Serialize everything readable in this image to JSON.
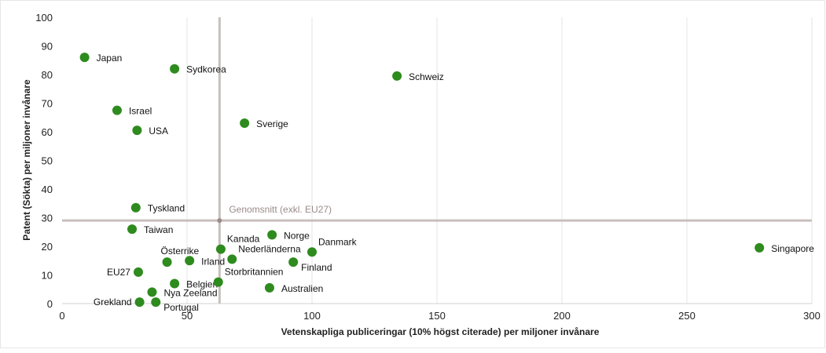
{
  "chart_data": {
    "type": "scatter",
    "title": "",
    "xlabel": "Vetenskapliga publiceringar (10% högst citerade) per miljoner invånare",
    "ylabel": "Patent (Sökta) per miljoner invånare",
    "xlim": [
      0,
      300
    ],
    "ylim": [
      0,
      100
    ],
    "xticks": [
      0,
      50,
      100,
      150,
      200,
      250,
      300
    ],
    "yticks": [
      0,
      10,
      20,
      30,
      40,
      50,
      60,
      70,
      80,
      90,
      100
    ],
    "grid": "vertical",
    "point_color": "#2e8b1e",
    "average_line_color": "#c9bfbd",
    "average": {
      "label": "Genomsnitt (exkl. EU27)",
      "x": 63,
      "y": 29
    },
    "points": [
      {
        "name": "Japan",
        "x": 9,
        "y": 86,
        "label_pos": "right"
      },
      {
        "name": "Sydkorea",
        "x": 45,
        "y": 82,
        "label_pos": "right"
      },
      {
        "name": "Schweiz",
        "x": 134,
        "y": 79.5,
        "label_pos": "right"
      },
      {
        "name": "Israel",
        "x": 22,
        "y": 67.5,
        "label_pos": "right"
      },
      {
        "name": "Sverige",
        "x": 73,
        "y": 63,
        "label_pos": "right"
      },
      {
        "name": "USA",
        "x": 30,
        "y": 60.5,
        "label_pos": "right"
      },
      {
        "name": "Tyskland",
        "x": 29.5,
        "y": 33.5,
        "label_pos": "right"
      },
      {
        "name": "Taiwan",
        "x": 28,
        "y": 26,
        "label_pos": "right"
      },
      {
        "name": "Norge",
        "x": 84,
        "y": 24,
        "label_pos": "right"
      },
      {
        "name": "Kanada",
        "x": 63.5,
        "y": 19,
        "label_pos": "above-right"
      },
      {
        "name": "Danmark",
        "x": 100,
        "y": 18,
        "label_pos": "above-right"
      },
      {
        "name": "Singapore",
        "x": 279,
        "y": 19.5,
        "label_pos": "right"
      },
      {
        "name": "Österrike",
        "x": 42,
        "y": 14.5,
        "label_pos": "above-left"
      },
      {
        "name": "Irland",
        "x": 51,
        "y": 15,
        "label_pos": "right"
      },
      {
        "name": "Nederländerna",
        "x": 68,
        "y": 15.5,
        "label_pos": "above-right"
      },
      {
        "name": "Finland",
        "x": 92.5,
        "y": 14.5,
        "label_pos": "below-right"
      },
      {
        "name": "EU27",
        "x": 30.5,
        "y": 11,
        "label_pos": "left"
      },
      {
        "name": "Belgien",
        "x": 45,
        "y": 7,
        "label_pos": "right"
      },
      {
        "name": "Storbritannien",
        "x": 62.5,
        "y": 7.5,
        "label_pos": "above-right"
      },
      {
        "name": "Australien",
        "x": 83,
        "y": 5.5,
        "label_pos": "right"
      },
      {
        "name": "Nya Zeeland",
        "x": 36,
        "y": 4,
        "label_pos": "right"
      },
      {
        "name": "Grekland",
        "x": 31,
        "y": 0.5,
        "label_pos": "left"
      },
      {
        "name": "Portugal",
        "x": 37.5,
        "y": 0.5,
        "label_pos": "below-right"
      }
    ]
  }
}
